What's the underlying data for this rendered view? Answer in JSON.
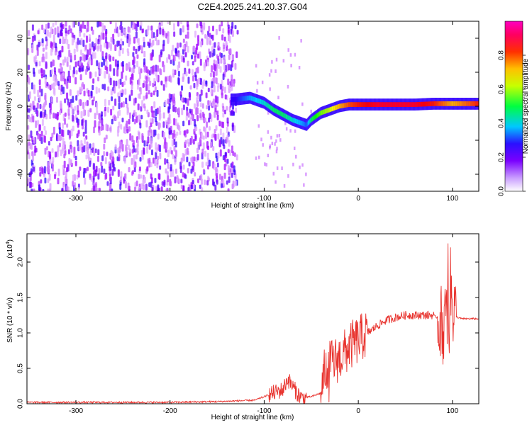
{
  "title": "C2E4.2025.241.20.37.G04",
  "chart_data": [
    {
      "type": "heatmap",
      "xlabel": "Height of straight line (km)",
      "ylabel": "Frequency (Hz)",
      "xlim": [
        -352,
        128
      ],
      "ylim": [
        -50,
        50
      ],
      "xticks": [
        -300,
        -200,
        -100,
        0,
        100
      ],
      "yticks": [
        -40,
        -20,
        0,
        20,
        40
      ],
      "colorbar": {
        "label": "Normalized spectral amplitude",
        "range": [
          0.0,
          1.0
        ],
        "ticks": [
          0.0,
          0.2,
          0.4,
          0.6,
          0.8
        ],
        "colormap": [
          "#ffffff",
          "#a000ff",
          "#3000ff",
          "#00d0ff",
          "#00ff00",
          "#ffff00",
          "#ff8000",
          "#ff0000",
          "#ff00b0"
        ]
      },
      "main_ridge": {
        "x": [
          -130,
          -115,
          -100,
          -90,
          -80,
          -70,
          -60,
          -55,
          -50,
          -40,
          -30,
          -20,
          -10,
          0,
          20,
          40,
          60,
          80,
          100,
          120,
          128
        ],
        "y": [
          4,
          5,
          2,
          -2,
          -5,
          -8,
          -10,
          -11,
          -8,
          -4,
          -2,
          0,
          1,
          1,
          1,
          1,
          1,
          1.5,
          1.5,
          1.5,
          1.5
        ],
        "amplitude": [
          0.25,
          0.35,
          0.4,
          0.45,
          0.45,
          0.4,
          0.35,
          0.3,
          0.45,
          0.55,
          0.6,
          0.7,
          0.8,
          0.85,
          0.9,
          0.9,
          0.9,
          0.85,
          0.7,
          0.8,
          0.85
        ]
      },
      "background_noise_range_km": [
        -352,
        -128
      ]
    },
    {
      "type": "line",
      "xlabel": "Height of straight line (km)",
      "ylabel": "SNR (10 * v/v)",
      "y_multiplier": "(x10",
      "y_exponent": "4",
      "xlim": [
        -352,
        128
      ],
      "ylim": [
        0,
        2.4
      ],
      "xticks": [
        -300,
        -200,
        -100,
        0,
        100
      ],
      "yticks": [
        0.0,
        0.5,
        1.0,
        1.5,
        2.0
      ],
      "color": "#e8322d",
      "series": [
        {
          "x": [
            -352,
            -300,
            -200,
            -150,
            -110,
            -100,
            -90,
            -80,
            -75,
            -70,
            -65,
            -60,
            -50,
            -40,
            -35,
            -30,
            -25,
            -20,
            -15,
            -10,
            -5,
            0,
            5,
            10,
            15,
            20,
            30,
            40,
            50,
            60,
            70,
            80,
            85,
            90,
            95,
            100,
            105,
            110,
            120,
            128
          ],
          "y": [
            0.02,
            0.02,
            0.02,
            0.03,
            0.05,
            0.1,
            0.15,
            0.2,
            0.35,
            0.25,
            0.15,
            0.08,
            0.1,
            0.15,
            0.5,
            0.55,
            0.6,
            0.65,
            0.7,
            0.8,
            0.85,
            0.9,
            0.95,
            1.0,
            1.05,
            1.1,
            1.18,
            1.22,
            1.25,
            1.25,
            1.25,
            1.25,
            1.2,
            1.1,
            1.2,
            1.3,
            1.22,
            1.2,
            1.2,
            1.2
          ]
        }
      ]
    }
  ]
}
